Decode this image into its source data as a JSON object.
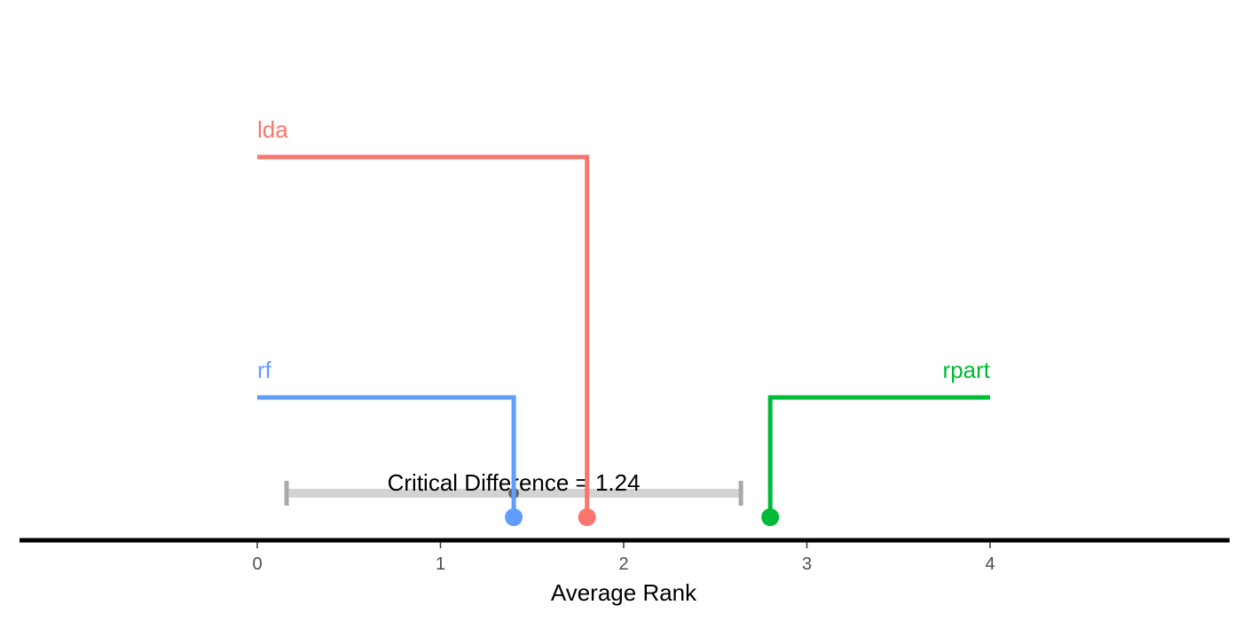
{
  "chart_data": {
    "type": "critical-difference",
    "xlabel": "Average Rank",
    "xlim": [
      0,
      4
    ],
    "ticks": [
      "0",
      "1",
      "2",
      "3",
      "4"
    ],
    "learners": [
      {
        "name": "rf",
        "rank": 1.4,
        "color": "#619CFF",
        "side": "left",
        "tier": 1
      },
      {
        "name": "lda",
        "rank": 1.8,
        "color": "#F8766D",
        "side": "left",
        "tier": 2
      },
      {
        "name": "rpart",
        "rank": 2.8,
        "color": "#00BA38",
        "side": "right",
        "tier": 1
      }
    ],
    "critical_difference": {
      "label": "Critical Difference = 1.24",
      "value": 1.24,
      "center": 1.4,
      "bar_color": "#d3d3d3",
      "cap_color": "#a9a9a9"
    },
    "grid": false
  }
}
